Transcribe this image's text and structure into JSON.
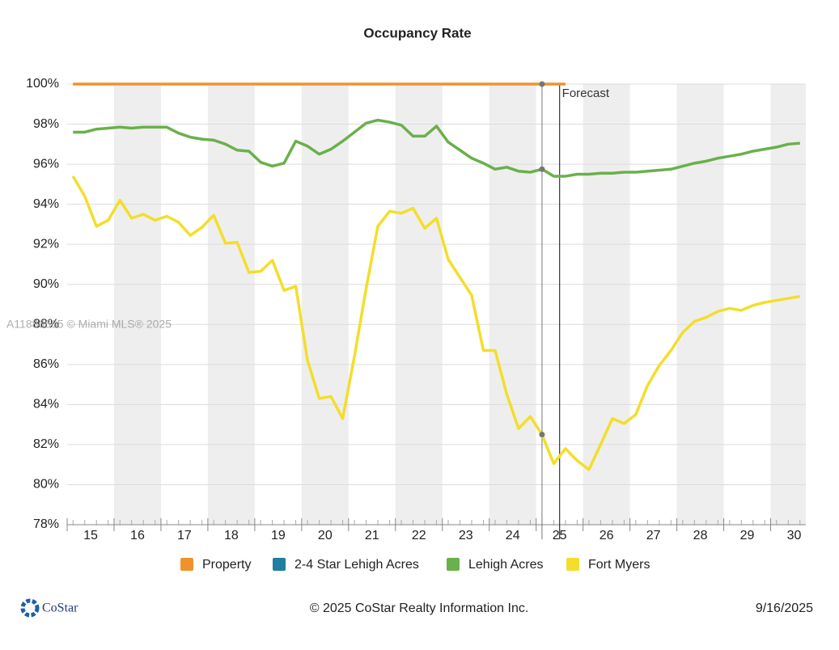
{
  "chart_data": {
    "type": "line",
    "title": "Occupancy Rate",
    "x": [
      15.125,
      15.375,
      15.625,
      15.875,
      16.125,
      16.375,
      16.625,
      16.875,
      17.125,
      17.375,
      17.625,
      17.875,
      18.125,
      18.375,
      18.625,
      18.875,
      19.125,
      19.375,
      19.625,
      19.875,
      20.125,
      20.375,
      20.625,
      20.875,
      21.125,
      21.375,
      21.625,
      21.875,
      22.125,
      22.375,
      22.625,
      22.875,
      23.125,
      23.375,
      23.625,
      23.875,
      24.125,
      24.375,
      24.625,
      24.875,
      25.125,
      25.375,
      25.625,
      25.875,
      26.125,
      26.375,
      26.625,
      26.875,
      27.125,
      27.375,
      27.625,
      27.875,
      28.125,
      28.375,
      28.625,
      28.875,
      29.125,
      29.375,
      29.625,
      29.875,
      30.125,
      30.375,
      30.625
    ],
    "series": [
      {
        "name": "Property",
        "color": "#f0922b",
        "values": [
          100,
          100,
          100,
          100,
          100,
          100,
          100,
          100,
          100,
          100,
          100,
          100,
          100,
          100,
          100,
          100,
          100,
          100,
          100,
          100,
          100,
          100,
          100,
          100,
          100,
          100,
          100,
          100,
          100,
          100,
          100,
          100,
          100,
          100,
          100,
          100,
          100,
          100,
          100,
          100,
          100,
          100,
          100,
          null,
          null,
          null,
          null,
          null,
          null,
          null,
          null,
          null,
          null,
          null,
          null,
          null,
          null,
          null,
          null,
          null,
          null,
          null,
          null
        ]
      },
      {
        "name": "2-4 Star Lehigh Acres",
        "color": "#1f7fa0",
        "values": [
          null,
          null,
          null,
          null,
          null,
          null,
          null,
          null,
          null,
          null,
          null,
          null,
          null,
          null,
          null,
          null,
          null,
          null,
          null,
          null,
          null,
          null,
          null,
          null,
          null,
          null,
          null,
          null,
          null,
          null,
          null,
          null,
          null,
          null,
          null,
          null,
          null,
          null,
          null,
          null,
          null,
          null,
          null,
          null,
          null,
          null,
          null,
          null,
          null,
          null,
          null,
          null,
          null,
          null,
          null,
          null,
          null,
          null,
          null,
          null,
          null,
          null,
          null
        ]
      },
      {
        "name": "Lehigh Acres",
        "color": "#6ab04c",
        "values": [
          97.6,
          97.6,
          97.75,
          97.8,
          97.85,
          97.8,
          97.85,
          97.85,
          97.85,
          97.55,
          97.35,
          97.25,
          97.2,
          97.0,
          96.7,
          96.65,
          96.1,
          95.9,
          96.05,
          97.15,
          96.9,
          96.5,
          96.75,
          97.15,
          97.6,
          98.05,
          98.2,
          98.1,
          97.95,
          97.4,
          97.4,
          97.9,
          97.1,
          96.7,
          96.3,
          96.05,
          95.75,
          95.85,
          95.65,
          95.6,
          95.75,
          95.4,
          95.4,
          95.5,
          95.5,
          95.55,
          95.55,
          95.6,
          95.6,
          95.65,
          95.7,
          95.75,
          95.9,
          96.05,
          96.15,
          96.3,
          96.4,
          96.5,
          96.65,
          96.75,
          96.85,
          97.0,
          97.05
        ]
      },
      {
        "name": "Fort Myers",
        "color": "#f3de2c",
        "values": [
          95.4,
          94.4,
          92.9,
          93.2,
          94.2,
          93.3,
          93.5,
          93.2,
          93.4,
          93.1,
          92.45,
          92.85,
          93.45,
          92.05,
          92.1,
          90.6,
          90.65,
          91.2,
          89.7,
          89.9,
          86.2,
          84.3,
          84.4,
          83.3,
          86.4,
          89.8,
          92.9,
          93.65,
          93.55,
          93.8,
          92.8,
          93.3,
          91.25,
          90.35,
          89.45,
          86.7,
          86.7,
          84.5,
          82.8,
          83.4,
          82.5,
          81.05,
          81.8,
          81.2,
          80.75,
          82.0,
          83.3,
          83.05,
          83.5,
          84.95,
          85.95,
          86.7,
          87.6,
          88.15,
          88.35,
          88.65,
          88.8,
          88.7,
          88.95,
          89.1,
          89.2,
          89.3,
          89.4
        ]
      }
    ],
    "xlim": [
      15,
      30.75
    ],
    "xticks": [
      {
        "value": 15.5,
        "label": "15"
      },
      {
        "value": 16.5,
        "label": "16"
      },
      {
        "value": 17.5,
        "label": "17"
      },
      {
        "value": 18.5,
        "label": "18"
      },
      {
        "value": 19.5,
        "label": "19"
      },
      {
        "value": 20.5,
        "label": "20"
      },
      {
        "value": 21.5,
        "label": "21"
      },
      {
        "value": 22.5,
        "label": "22"
      },
      {
        "value": 23.5,
        "label": "23"
      },
      {
        "value": 24.5,
        "label": "24"
      },
      {
        "value": 25.5,
        "label": "25"
      },
      {
        "value": 26.5,
        "label": "26"
      },
      {
        "value": 27.5,
        "label": "27"
      },
      {
        "value": 28.5,
        "label": "28"
      },
      {
        "value": 29.5,
        "label": "29"
      },
      {
        "value": 30.5,
        "label": "30"
      }
    ],
    "ylim": [
      78,
      100
    ],
    "yticks": [
      {
        "value": 78,
        "label": "78%"
      },
      {
        "value": 80,
        "label": "80%"
      },
      {
        "value": 82,
        "label": "82%"
      },
      {
        "value": 84,
        "label": "84%"
      },
      {
        "value": 86,
        "label": "86%"
      },
      {
        "value": 88,
        "label": "88%"
      },
      {
        "value": 90,
        "label": "90%"
      },
      {
        "value": 92,
        "label": "92%"
      },
      {
        "value": 94,
        "label": "94%"
      },
      {
        "value": 96,
        "label": "96%"
      },
      {
        "value": 98,
        "label": "98%"
      },
      {
        "value": 100,
        "label": "100%"
      }
    ],
    "grid": true,
    "highlight_x": 25.125,
    "forecast": {
      "label": "Forecast",
      "x": 25.5
    }
  },
  "watermark": "A11886665 © Miami MLS® 2025",
  "footer": {
    "brand": "CoStar",
    "copyright": "© 2025 CoStar Realty Information Inc.",
    "date": "9/16/2025"
  }
}
